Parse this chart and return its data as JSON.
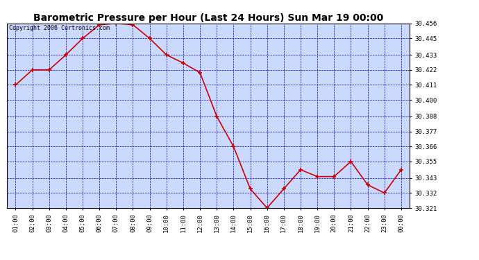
{
  "title": "Barometric Pressure per Hour (Last 24 Hours) Sun Mar 19 00:00",
  "copyright": "Copyright 2006 Curtronics.com",
  "x_labels": [
    "01:00",
    "02:00",
    "03:00",
    "04:00",
    "05:00",
    "06:00",
    "07:00",
    "08:00",
    "09:00",
    "10:00",
    "11:00",
    "12:00",
    "13:00",
    "14:00",
    "15:00",
    "16:00",
    "17:00",
    "18:00",
    "19:00",
    "20:00",
    "21:00",
    "22:00",
    "23:00",
    "00:00"
  ],
  "y_values": [
    30.411,
    30.422,
    30.422,
    30.433,
    30.445,
    30.455,
    30.456,
    30.455,
    30.445,
    30.433,
    30.427,
    30.42,
    30.388,
    30.366,
    30.335,
    30.321,
    30.335,
    30.349,
    30.344,
    30.344,
    30.355,
    30.338,
    30.332,
    30.349
  ],
  "line_color": "#cc0000",
  "marker_color": "#cc0000",
  "bg_color": "#ccd9ff",
  "grid_color": "#0000bb",
  "border_color": "#000000",
  "title_bg": "#ffffff",
  "ylim_min": 30.321,
  "ylim_max": 30.456,
  "yticks": [
    30.321,
    30.332,
    30.343,
    30.355,
    30.366,
    30.377,
    30.388,
    30.4,
    30.411,
    30.422,
    30.433,
    30.445,
    30.456
  ],
  "title_fontsize": 10,
  "copyright_fontsize": 6,
  "tick_fontsize": 6.5
}
